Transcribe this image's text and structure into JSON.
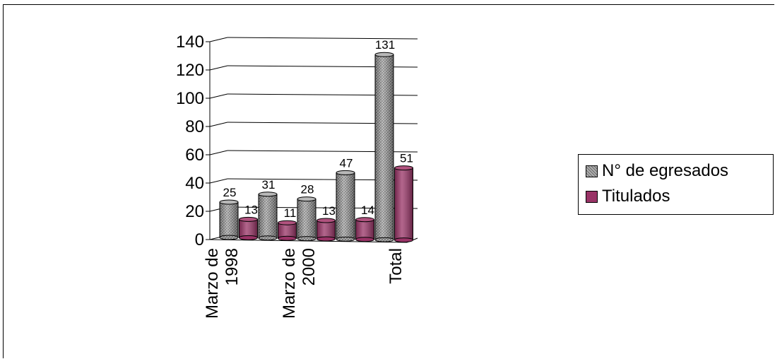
{
  "chart_data": {
    "type": "bar",
    "categories": [
      "Marzo de 1998",
      "",
      "Marzo de 2000",
      "",
      "Total"
    ],
    "category_label_lines": [
      [
        "Marzo de",
        "1998"
      ],
      [],
      [
        "Marzo de",
        "2000"
      ],
      [],
      [
        "Total"
      ]
    ],
    "series": [
      {
        "name": "N° de egresados",
        "values": [
          25,
          31,
          28,
          47,
          131
        ],
        "color": "#8c8c8c"
      },
      {
        "name": "Titulados",
        "values": [
          13,
          11,
          13,
          14,
          51
        ],
        "color": "#993366"
      }
    ],
    "ylim": [
      0,
      140
    ],
    "yticks": [
      0,
      20,
      40,
      60,
      80,
      100,
      120,
      140
    ],
    "grid": true,
    "legend": "right"
  }
}
